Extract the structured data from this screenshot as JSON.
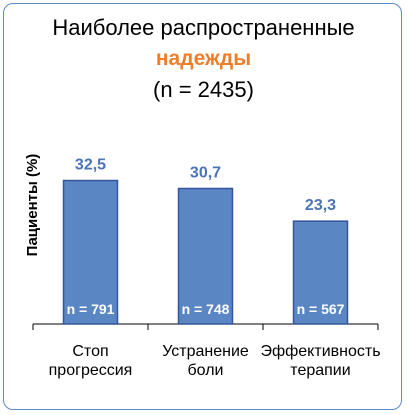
{
  "title_line1": "Наиболее распространенные",
  "title_line2": "надежды",
  "title_line3": "(n = 2435)",
  "colors": {
    "bar": "#5b86c4",
    "bar_border": "#34569c",
    "value_label": "#4a74b5",
    "highlight": "#ef7d2a",
    "frame": "#5b8ac9"
  },
  "chart_data": {
    "type": "bar",
    "ylabel": "Пациенты (%)",
    "categories": [
      [
        "Стоп",
        "прогрессия"
      ],
      [
        "Устранение",
        "боли"
      ],
      [
        "Эффективность",
        "терапии"
      ]
    ],
    "values": [
      32.5,
      30.7,
      23.3
    ],
    "value_labels": [
      "32,5",
      "30,7",
      "23,3"
    ],
    "n_labels": [
      "n = 791",
      "n = 748",
      "n = 567"
    ],
    "ylim": [
      0,
      40
    ],
    "grid": false
  }
}
